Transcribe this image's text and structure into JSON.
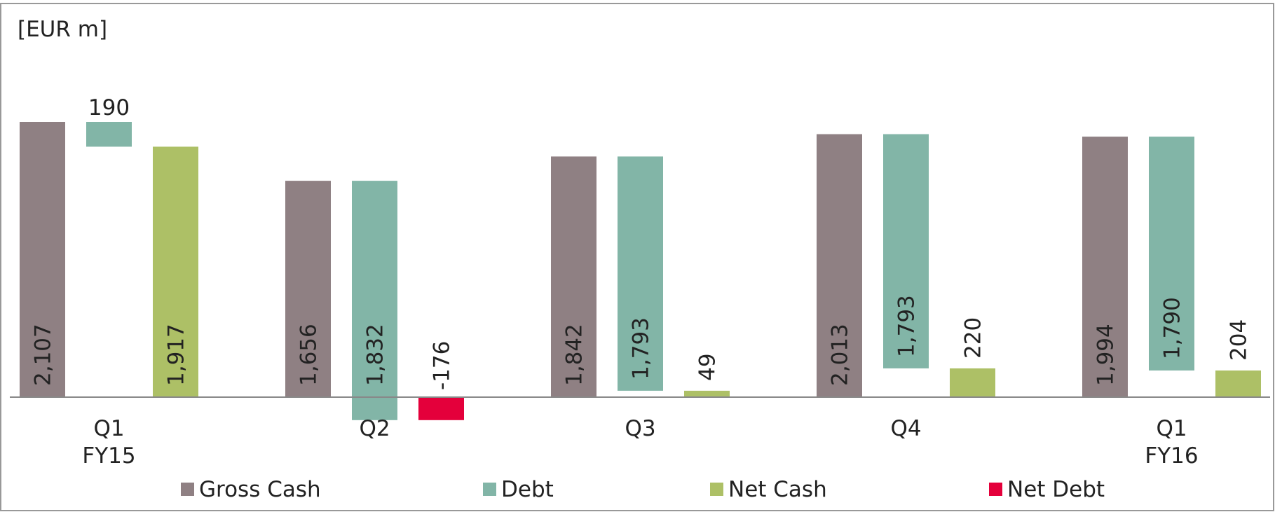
{
  "chart_data": {
    "type": "waterfall",
    "unit_label": "[EUR m]",
    "categories": [
      [
        "Q1",
        "FY15"
      ],
      [
        "Q2"
      ],
      [
        "Q3"
      ],
      [
        "Q4"
      ],
      [
        "Q1",
        "FY16"
      ]
    ],
    "series": [
      {
        "name": "Gross Cash",
        "color": "#8f8083",
        "values": [
          2107,
          1656,
          1842,
          2013,
          1994
        ],
        "value_labels": [
          "2,107",
          "1,656",
          "1,842",
          "2,013",
          "1,994"
        ]
      },
      {
        "name": "Debt",
        "color": "#82b5a7",
        "values": [
          190,
          1832,
          1793,
          1793,
          1790
        ],
        "value_labels": [
          "190",
          "1,832",
          "1,793",
          "1,793",
          "1,790"
        ]
      },
      {
        "name": "Net Cash",
        "color": "#adc066",
        "values": [
          1917,
          null,
          49,
          220,
          204
        ],
        "value_labels": [
          "1,917",
          null,
          "49",
          "220",
          "204"
        ]
      },
      {
        "name": "Net Debt",
        "color": "#e4003b",
        "values": [
          null,
          -176,
          null,
          null,
          null
        ]
      }
    ]
  }
}
